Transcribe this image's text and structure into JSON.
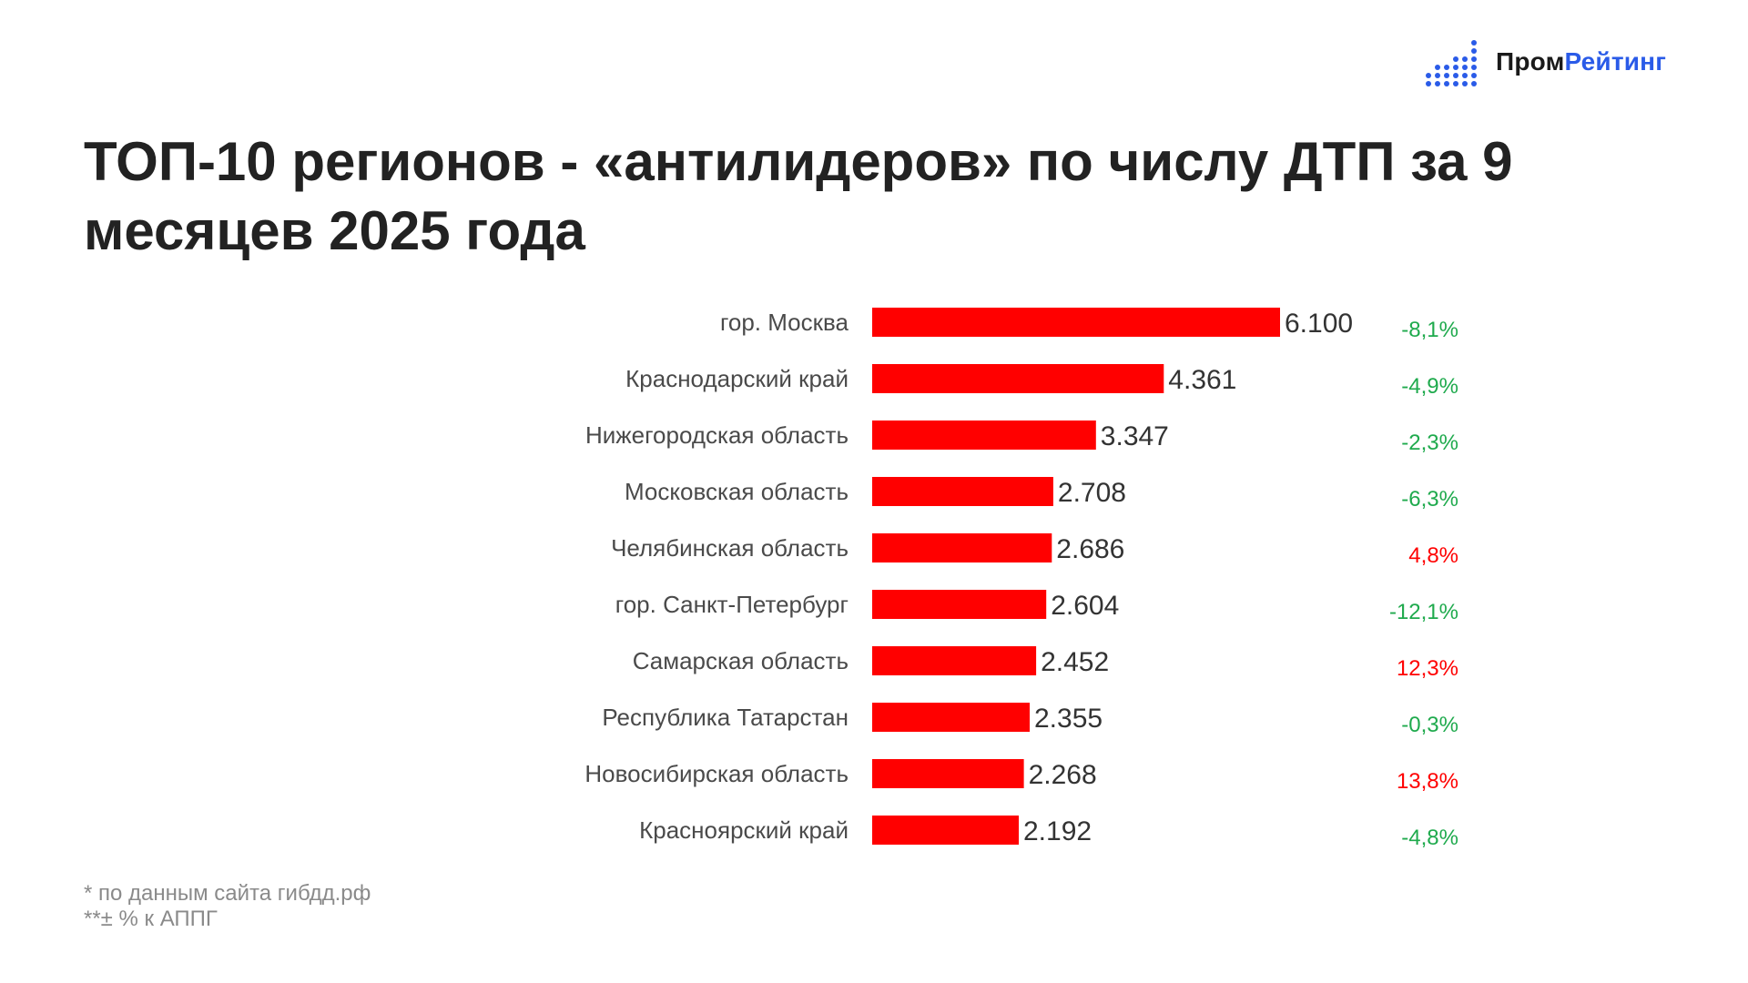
{
  "logo": {
    "part1": "Пром",
    "part2": "Рейтинг",
    "icon": "bar-dots-icon"
  },
  "title": "ТОП-10 регионов - «антилидеров» по числу ДТП за 9 месяцев 2025 года",
  "colors": {
    "bar": "#ff0000",
    "negative_change": "#1faa4d",
    "positive_change": "#ff0000",
    "title": "#222222",
    "category_label": "#4a4a4a",
    "value_label": "#333333",
    "footnote": "#8a8a8a",
    "logo_accent": "#2a5be8"
  },
  "chart_data": {
    "type": "bar",
    "orientation": "horizontal",
    "categories": [
      "гор. Москва",
      "Краснодарский край",
      "Нижегородская область",
      "Московская область",
      "Челябинская область",
      "гор. Санкт-Петербург",
      "Самарская область",
      "Республика Татарстан",
      "Новосибирская область",
      "Красноярский край"
    ],
    "values": [
      6100,
      4361,
      3347,
      2708,
      2686,
      2604,
      2452,
      2355,
      2268,
      2192
    ],
    "value_labels": [
      "6.100",
      "4.361",
      "3.347",
      "2.708",
      "2.686",
      "2.604",
      "2.452",
      "2.355",
      "2.268",
      "2.192"
    ],
    "changes": [
      "-8,1%",
      "-4,9%",
      "-2,3%",
      "-6,3%",
      "4,8%",
      "-12,1%",
      "12,3%",
      "-0,3%",
      "13,8%",
      "-4,8%"
    ],
    "xlim": [
      0,
      6100
    ],
    "grid": false,
    "legend": "none"
  },
  "footnotes": [
    "* по данным сайта гибдд.рф",
    "**± % к АППГ"
  ]
}
